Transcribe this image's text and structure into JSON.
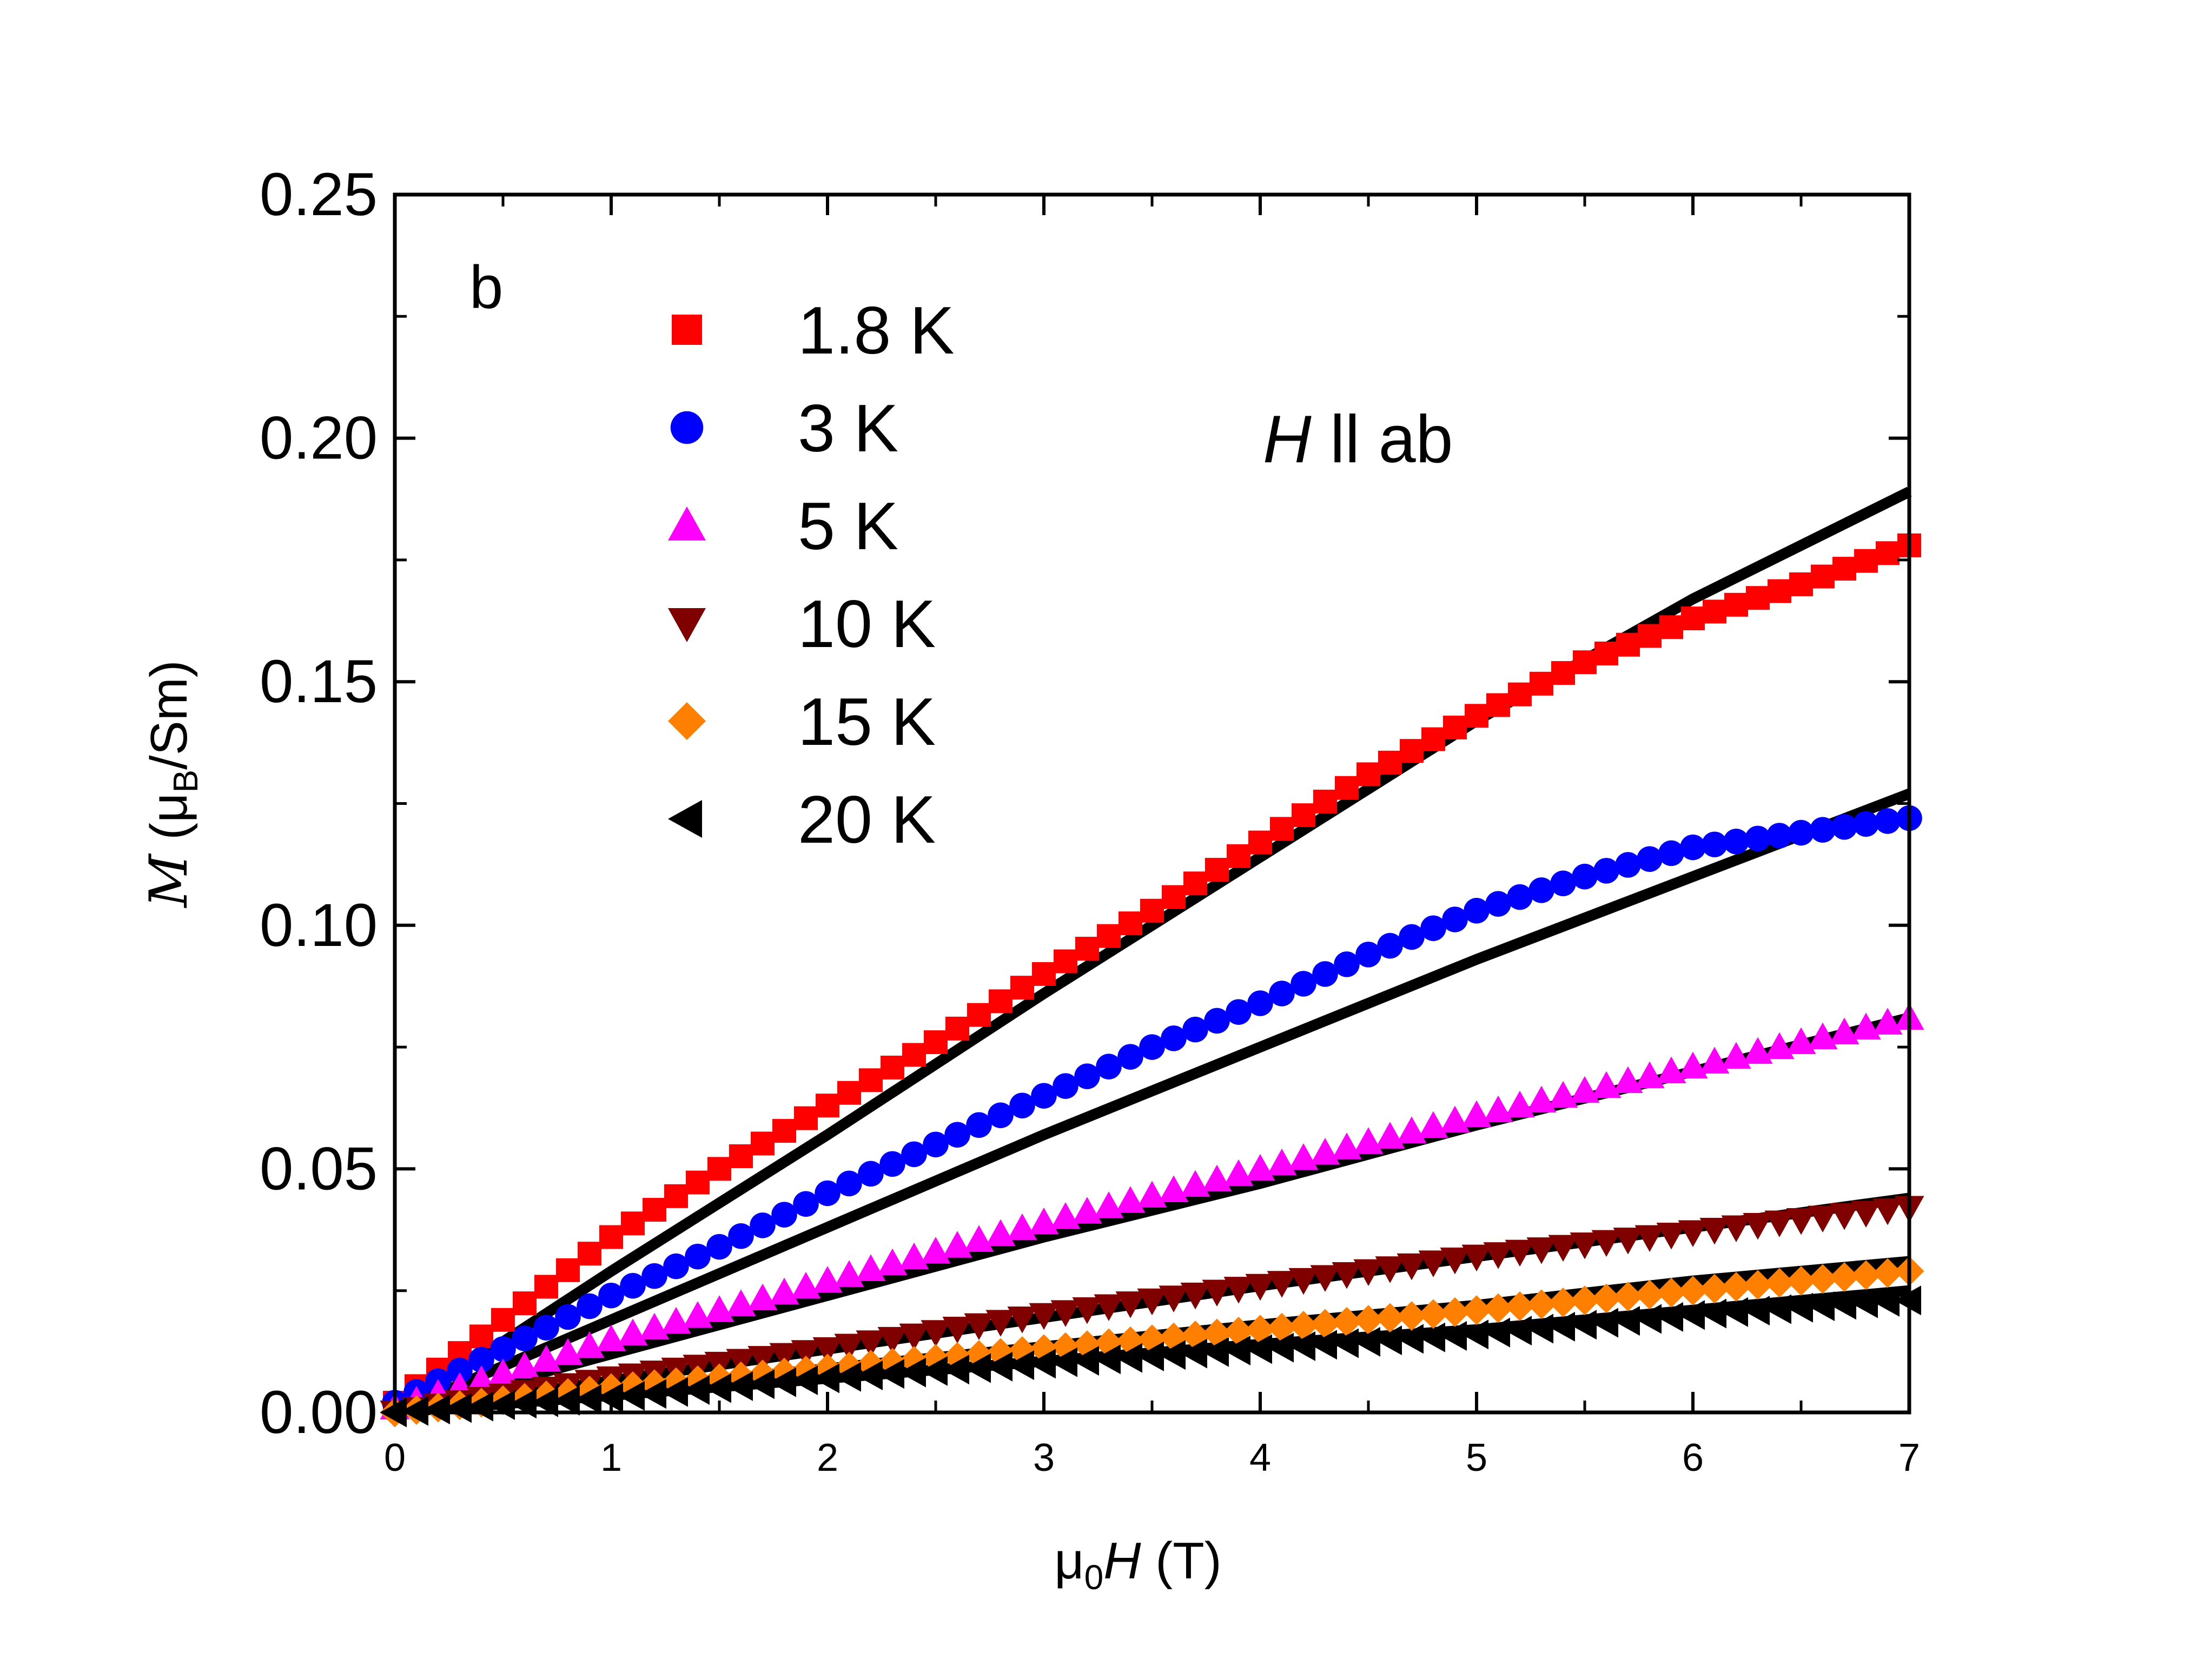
{
  "chart_data": {
    "type": "scatter",
    "panel_label": "b",
    "annotation": {
      "symbol": "H",
      "text": " ll ab"
    },
    "xlabel": {
      "prefix": "μ",
      "sub": "0",
      "symbol": "H",
      "unit": " (T)"
    },
    "ylabel": {
      "symbol": "M",
      "open": " (μ",
      "sub": "B",
      "close": "/Sm)"
    },
    "xlim": [
      0,
      7
    ],
    "ylim": [
      0,
      0.25
    ],
    "x_ticks": [
      "0",
      "1",
      "2",
      "3",
      "4",
      "5",
      "6",
      "7"
    ],
    "y_ticks": [
      "0.00",
      "0.05",
      "0.10",
      "0.15",
      "0.20",
      "0.25"
    ],
    "grid": false,
    "legend_position": "top-left",
    "series": [
      {
        "name": "1.8 K",
        "marker": "square",
        "color": "#ff0000",
        "step": 0.1,
        "points": [
          [
            0,
            0.002
          ],
          [
            0.5,
            0.019
          ],
          [
            1,
            0.036
          ],
          [
            1.5,
            0.05
          ],
          [
            2,
            0.063
          ],
          [
            2.5,
            0.076
          ],
          [
            3,
            0.09
          ],
          [
            3.5,
            0.103
          ],
          [
            4,
            0.117
          ],
          [
            4.5,
            0.131
          ],
          [
            5,
            0.143
          ],
          [
            5.5,
            0.154
          ],
          [
            6,
            0.163
          ],
          [
            6.5,
            0.17
          ],
          [
            7,
            0.178
          ]
        ]
      },
      {
        "name": "3 K",
        "marker": "circle",
        "color": "#0000ff",
        "step": 0.1,
        "points": [
          [
            0,
            0.002
          ],
          [
            0.5,
            0.013
          ],
          [
            1,
            0.024
          ],
          [
            1.5,
            0.034
          ],
          [
            2,
            0.045
          ],
          [
            2.5,
            0.055
          ],
          [
            3,
            0.065
          ],
          [
            3.5,
            0.075
          ],
          [
            4,
            0.084
          ],
          [
            4.5,
            0.094
          ],
          [
            5,
            0.103
          ],
          [
            5.5,
            0.11
          ],
          [
            6,
            0.116
          ],
          [
            6.5,
            0.119
          ],
          [
            7,
            0.122
          ]
        ]
      },
      {
        "name": "5 K",
        "marker": "triangle-up",
        "color": "#ff00ff",
        "step": 0.1,
        "points": [
          [
            0,
            0.001
          ],
          [
            0.5,
            0.008
          ],
          [
            1,
            0.015
          ],
          [
            2,
            0.027
          ],
          [
            3,
            0.039
          ],
          [
            4,
            0.05
          ],
          [
            5,
            0.061
          ],
          [
            6,
            0.071
          ],
          [
            7,
            0.081
          ]
        ]
      },
      {
        "name": "10 K",
        "marker": "triangle-down",
        "color": "#800000",
        "step": 0.1,
        "points": [
          [
            0,
            0.0
          ],
          [
            1,
            0.007
          ],
          [
            2,
            0.013
          ],
          [
            3,
            0.02
          ],
          [
            4,
            0.026
          ],
          [
            5,
            0.032
          ],
          [
            6,
            0.037
          ],
          [
            7,
            0.042
          ]
        ]
      },
      {
        "name": "15 K",
        "marker": "diamond",
        "color": "#ff8000",
        "step": 0.1,
        "points": [
          [
            0,
            0.0
          ],
          [
            1,
            0.005
          ],
          [
            2,
            0.009
          ],
          [
            3,
            0.013
          ],
          [
            4,
            0.017
          ],
          [
            5,
            0.021
          ],
          [
            6,
            0.025
          ],
          [
            7,
            0.029
          ]
        ]
      },
      {
        "name": "20 K",
        "marker": "triangle-left",
        "color": "#000000",
        "step": 0.1,
        "points": [
          [
            0,
            0.0
          ],
          [
            1,
            0.003
          ],
          [
            2,
            0.007
          ],
          [
            3,
            0.01
          ],
          [
            4,
            0.013
          ],
          [
            5,
            0.016
          ],
          [
            6,
            0.02
          ],
          [
            7,
            0.023
          ]
        ]
      }
    ],
    "fit_curves": [
      {
        "color": "#000000",
        "points": [
          [
            0,
            0.0
          ],
          [
            1,
            0.029
          ],
          [
            2,
            0.057
          ],
          [
            3,
            0.086
          ],
          [
            4,
            0.114
          ],
          [
            5,
            0.142
          ],
          [
            6,
            0.167
          ],
          [
            7,
            0.189
          ]
        ]
      },
      {
        "color": "#000000",
        "points": [
          [
            0,
            0.0
          ],
          [
            1,
            0.019
          ],
          [
            2,
            0.038
          ],
          [
            3,
            0.057
          ],
          [
            4,
            0.075
          ],
          [
            5,
            0.093
          ],
          [
            6,
            0.11
          ],
          [
            7,
            0.127
          ]
        ]
      },
      {
        "color": "#000000",
        "points": [
          [
            0,
            0.0
          ],
          [
            1,
            0.012
          ],
          [
            2,
            0.024
          ],
          [
            3,
            0.036
          ],
          [
            4,
            0.047
          ],
          [
            5,
            0.059
          ],
          [
            6,
            0.07
          ],
          [
            7,
            0.081
          ]
        ]
      },
      {
        "color": "#000000",
        "points": [
          [
            0,
            0.0
          ],
          [
            1,
            0.0065
          ],
          [
            2,
            0.013
          ],
          [
            3,
            0.0195
          ],
          [
            4,
            0.026
          ],
          [
            5,
            0.032
          ],
          [
            6,
            0.038
          ],
          [
            7,
            0.044
          ]
        ]
      },
      {
        "color": "#000000",
        "points": [
          [
            0,
            0.0
          ],
          [
            1,
            0.0045
          ],
          [
            2,
            0.009
          ],
          [
            3,
            0.0135
          ],
          [
            4,
            0.018
          ],
          [
            5,
            0.022
          ],
          [
            6,
            0.027
          ],
          [
            7,
            0.031
          ]
        ]
      },
      {
        "color": "#000000",
        "points": [
          [
            0,
            0.0
          ],
          [
            1,
            0.0035
          ],
          [
            2,
            0.007
          ],
          [
            3,
            0.0105
          ],
          [
            4,
            0.014
          ],
          [
            5,
            0.017
          ],
          [
            6,
            0.021
          ],
          [
            7,
            0.025
          ]
        ]
      }
    ]
  }
}
